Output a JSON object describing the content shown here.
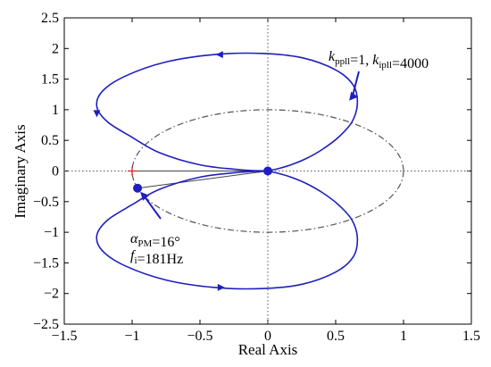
{
  "chart_data": {
    "type": "line",
    "title": "",
    "xlabel": "Real Axis",
    "ylabel": "Imaginary Axis",
    "xlim": [
      -1.5,
      1.5
    ],
    "ylim": [
      -2.5,
      2.5
    ],
    "xticks": [
      -1.5,
      -1,
      -0.5,
      0,
      0.5,
      1,
      1.5
    ],
    "yticks": [
      -2.5,
      -2,
      -1.5,
      -1,
      -0.5,
      0,
      0.5,
      1,
      1.5,
      2,
      2.5
    ],
    "xtick_labels": [
      "−1.5",
      "−1",
      "−0.5",
      "0",
      "0.5",
      "1",
      "1.5"
    ],
    "ytick_labels": [
      "−2.5",
      "−2",
      "−1.5",
      "−1",
      "−0.5",
      "0",
      "0.5",
      "1",
      "1.5",
      "2",
      "2.5"
    ],
    "grid": false,
    "colors": {
      "nyquist": "#1f1fbf",
      "unit_circle": "#555555",
      "axes": "#000000",
      "critical_point": "#dd2222",
      "phase_line": "#444444"
    },
    "series": [
      {
        "x": [
          0.0,
          -0.2,
          -0.5,
          -0.8,
          -1.0,
          -1.18,
          -1.26,
          -1.22,
          -1.05,
          -0.75,
          -0.4,
          -0.05,
          0.25,
          0.5,
          0.63,
          0.66,
          0.62,
          0.52,
          0.4,
          0.28,
          0.17,
          0.08,
          0.02,
          0.0
        ],
        "y": [
          0.0,
          0.02,
          0.1,
          0.3,
          0.55,
          0.8,
          1.05,
          1.3,
          1.55,
          1.78,
          1.9,
          1.92,
          1.85,
          1.65,
          1.4,
          1.1,
          0.8,
          0.55,
          0.35,
          0.2,
          0.1,
          0.04,
          0.01,
          0.0
        ]
      },
      {
        "x": [
          0.0,
          0.02,
          0.08,
          0.17,
          0.28,
          0.4,
          0.52,
          0.62,
          0.66,
          0.63,
          0.5,
          0.25,
          -0.05,
          -0.4,
          -0.75,
          -1.05,
          -1.22,
          -1.26,
          -1.18,
          -1.0,
          -0.8,
          -0.5,
          -0.2,
          0.0
        ],
        "y": [
          0.0,
          -0.01,
          -0.04,
          -0.1,
          -0.2,
          -0.35,
          -0.55,
          -0.8,
          -1.1,
          -1.4,
          -1.65,
          -1.85,
          -1.92,
          -1.9,
          -1.78,
          -1.55,
          -1.3,
          -1.05,
          -0.8,
          -0.55,
          -0.3,
          -0.1,
          -0.02,
          0.0
        ]
      }
    ],
    "unit_circle": {
      "center": [
        0,
        0
      ],
      "radius": 1
    },
    "critical_point": [
      -1,
      0
    ],
    "pm_point": [
      -0.96,
      -0.28
    ],
    "origin_point": [
      0,
      0
    ],
    "direction_arrows": [
      {
        "at": [
          -0.35,
          1.9
        ],
        "dir": "left"
      },
      {
        "at": [
          -1.26,
          0.95
        ],
        "dir": "down"
      },
      {
        "at": [
          -0.35,
          -1.9
        ],
        "dir": "right"
      }
    ],
    "annotations": [
      {
        "text_parts": [
          [
            "k",
            "italic"
          ],
          [
            "ppll",
            "sub"
          ],
          [
            "=1, ",
            "normal"
          ],
          [
            "k",
            "italic"
          ],
          [
            "ipll",
            "sub"
          ],
          [
            "=4000",
            "normal"
          ]
        ]
      },
      {
        "lines": [
          [
            [
              "α",
              "italic"
            ],
            [
              "PM",
              "sub"
            ],
            [
              "=16°",
              "normal"
            ]
          ],
          [
            [
              "f",
              "italic"
            ],
            [
              "i",
              "sub"
            ],
            [
              "=181Hz",
              "normal"
            ]
          ]
        ]
      }
    ]
  }
}
